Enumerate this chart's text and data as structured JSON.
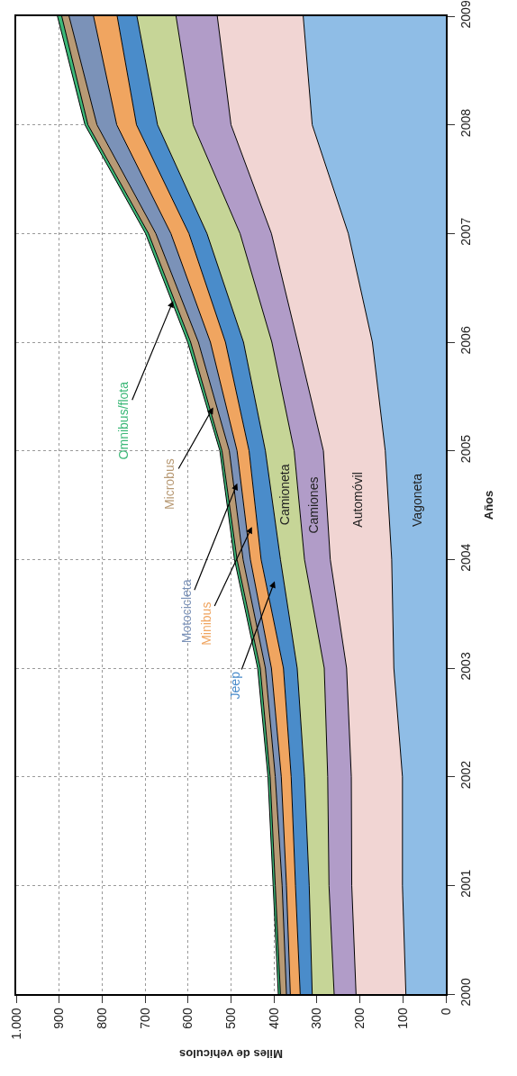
{
  "chart_data": {
    "type": "area",
    "stacked": true,
    "orientation": "horizontal",
    "xlabel": "Miles de vehículos",
    "ylabel": "Años",
    "x": [
      2000,
      2001,
      2002,
      2003,
      2004,
      2005,
      2006,
      2007,
      2008,
      2009
    ],
    "ylim": [
      2000,
      2009
    ],
    "yticks": [
      2000,
      2001,
      2002,
      2003,
      2004,
      2005,
      2006,
      2007,
      2008,
      2009
    ],
    "xlim": [
      1000,
      0
    ],
    "xticks": [
      0,
      100,
      200,
      300,
      400,
      500,
      600,
      700,
      800,
      900,
      {
        "value": 1000,
        "label": "1.000"
      }
    ],
    "grid": true,
    "legend": false,
    "series": [
      {
        "name": "Vagoneta",
        "color": "#8fbde6",
        "values": [
          93,
          101,
          101,
          121,
          126,
          141,
          171,
          227,
          311,
          332
        ]
      },
      {
        "name": "Automóvil",
        "color": "#f1d5d3",
        "values": [
          116,
          118,
          119,
          110,
          143,
          144,
          174,
          179,
          189,
          200
        ]
      },
      {
        "name": "Camiones",
        "color": "#b19cc8",
        "values": [
          51,
          53,
          55,
          52,
          60,
          68,
          60,
          73,
          88,
          96
        ]
      },
      {
        "name": "Camioneta",
        "color": "#c6d597",
        "values": [
          51,
          46,
          54,
          63,
          56,
          67,
          66,
          77,
          83,
          91
        ]
      },
      {
        "name": "Jeep",
        "color": "#4a8cca",
        "values": [
          28,
          32,
          31,
          32,
          45,
          38,
          42,
          42,
          49,
          46
        ]
      },
      {
        "name": "Minibus",
        "color": "#f0a560",
        "values": [
          23,
          21,
          23,
          28,
          25,
          28,
          35,
          42,
          46,
          55
        ]
      },
      {
        "name": "Motocicleta",
        "color": "#7b92b8",
        "values": [
          9,
          10,
          14,
          14,
          17,
          18,
          28,
          35,
          46,
          57
        ]
      },
      {
        "name": "Microbus",
        "color": "#b89a75",
        "values": [
          14,
          16,
          12,
          12,
          14,
          17,
          18,
          17,
          21,
          17
        ]
      },
      {
        "name": "Omnibus/flota",
        "color": "#3cb878",
        "values": [
          5,
          5,
          5,
          6,
          6,
          5,
          7,
          7,
          7,
          10
        ]
      }
    ]
  }
}
